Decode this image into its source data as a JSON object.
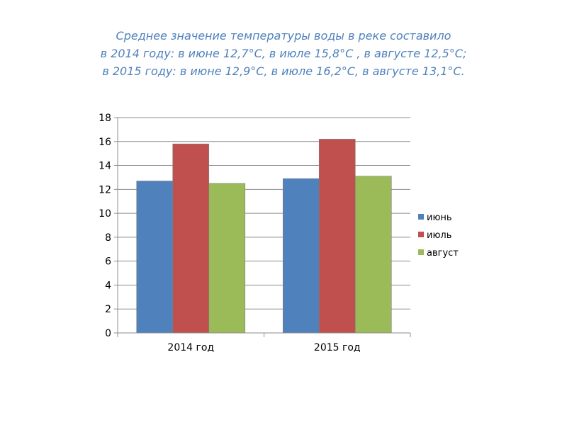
{
  "heading": {
    "line1": "Среднее значение температуры воды в реке составило",
    "line2": "в 2014 году: в июне 12,7°С, в июле 15,8°С , в августе 12,5°С;",
    "line3": "в 2015 году: в июне 12,9°С, в июле 16,2°С, в августе 13,1°С."
  },
  "chart_data": {
    "type": "bar",
    "title": "",
    "xlabel": "",
    "ylabel": "",
    "categories": [
      "2014 год",
      "2015 год"
    ],
    "series": [
      {
        "name": "июнь",
        "values": [
          12.7,
          12.9
        ],
        "color": "#4f81bd"
      },
      {
        "name": "июль",
        "values": [
          15.8,
          16.2
        ],
        "color": "#c0504d"
      },
      {
        "name": "август",
        "values": [
          12.5,
          13.1
        ],
        "color": "#9bbb59"
      }
    ],
    "ylim": [
      0,
      18
    ],
    "yticks": [
      "0",
      "2",
      "4",
      "6",
      "8",
      "10",
      "12",
      "14",
      "16",
      "18"
    ],
    "grid": true,
    "legend_position": "right"
  }
}
